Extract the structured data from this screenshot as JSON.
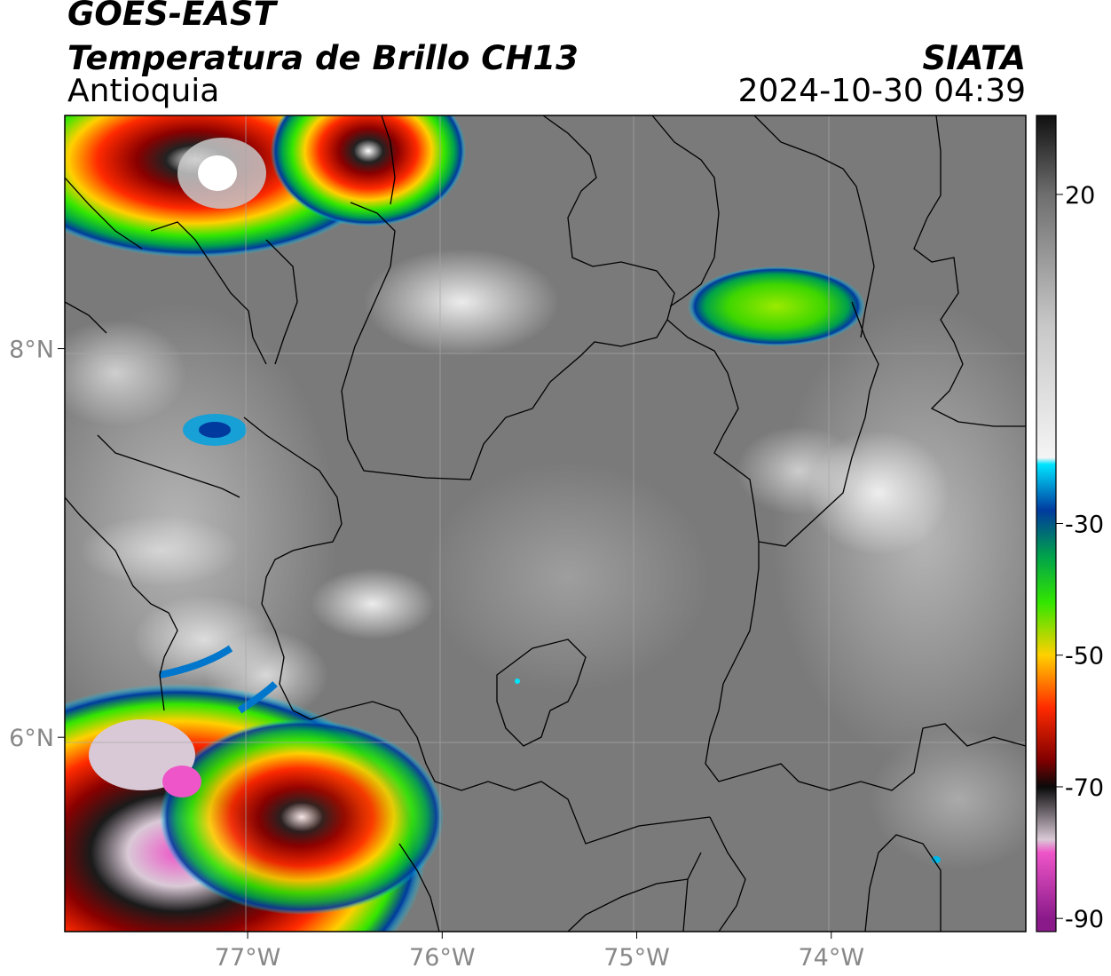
{
  "header": {
    "line1": "GOES-EAST",
    "line2": "Temperatura de Brillo CH13",
    "line3": "Antioquia",
    "agency": "SIATA",
    "datetime": "2024-10-30 04:39"
  },
  "map": {
    "lon_range": [
      -77.94,
      -73.0
    ],
    "lat_range": [
      5.0,
      9.2
    ],
    "lon_ticks": [
      {
        "value": -77,
        "label": "77°W"
      },
      {
        "value": -76,
        "label": "76°W"
      },
      {
        "value": -75,
        "label": "75°W"
      },
      {
        "value": -74,
        "label": "74°W"
      }
    ],
    "lat_ticks": [
      {
        "value": 8,
        "label": "8°N"
      },
      {
        "value": 6,
        "label": "6°N"
      }
    ],
    "grid": true
  },
  "colorbar": {
    "range": [
      -92,
      32
    ],
    "ticks": [
      {
        "value": 20,
        "label": "20"
      },
      {
        "value": -30,
        "label": "-30"
      },
      {
        "value": -50,
        "label": "-50"
      },
      {
        "value": -70,
        "label": "-70"
      },
      {
        "value": -90,
        "label": "-90"
      }
    ],
    "stops": [
      {
        "value": 32,
        "color": "#101010"
      },
      {
        "value": 20,
        "color": "#6e6e6e"
      },
      {
        "value": 0,
        "color": "#c8c8c8"
      },
      {
        "value": -20,
        "color": "#f4f4f4"
      },
      {
        "value": -21,
        "color": "#00e5ff"
      },
      {
        "value": -28,
        "color": "#003a9e"
      },
      {
        "value": -35,
        "color": "#00a24a"
      },
      {
        "value": -42,
        "color": "#33e600"
      },
      {
        "value": -50,
        "color": "#ffd000"
      },
      {
        "value": -58,
        "color": "#ff2a00"
      },
      {
        "value": -66,
        "color": "#800000"
      },
      {
        "value": -70,
        "color": "#0a0a0a"
      },
      {
        "value": -78,
        "color": "#d9c9d6"
      },
      {
        "value": -80,
        "color": "#ee55c8"
      },
      {
        "value": -90,
        "color": "#8a1a8a"
      }
    ]
  }
}
